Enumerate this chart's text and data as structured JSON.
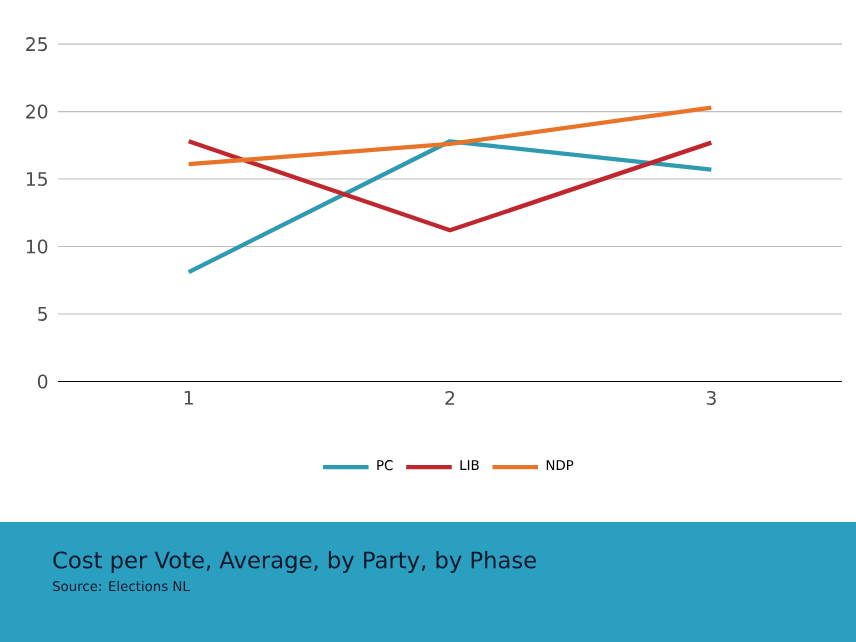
{
  "chart_data": {
    "type": "line",
    "title": "Cost per Vote, Average, by Party, by Phase",
    "annotations": [
      "Source:  Elections NL"
    ],
    "categories": [
      "1",
      "2",
      "3"
    ],
    "series": [
      {
        "name": "PC",
        "color": "#2e9bb0",
        "values": [
          8.1,
          17.8,
          15.7
        ]
      },
      {
        "name": "LIB",
        "color": "#c0262d",
        "values": [
          17.8,
          11.2,
          17.7
        ]
      },
      {
        "name": "NDP",
        "color": "#e8742a",
        "values": [
          16.1,
          17.6,
          20.3
        ]
      }
    ],
    "ylim": [
      0,
      25
    ],
    "yticks": [
      0,
      5,
      10,
      15,
      20,
      25
    ],
    "grid": "y",
    "legend": "bottom",
    "marker": "none",
    "line_style": "solid"
  }
}
